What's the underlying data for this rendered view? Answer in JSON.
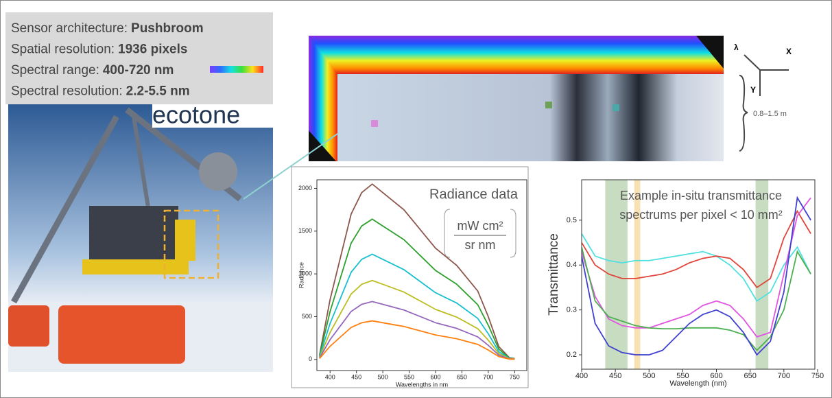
{
  "specs": [
    {
      "label": "Sensor architecture:",
      "value": "Pushbroom"
    },
    {
      "label": "Spatial resolution:",
      "value": "1936 pixels"
    },
    {
      "label": "Spectral range:",
      "value": "400-720 nm"
    },
    {
      "label": "Spectral resolution:",
      "value": "2.2-5.5 nm"
    }
  ],
  "logo": "ecotone",
  "axes_labels": {
    "lambda": "λ",
    "x": "X",
    "y": "Y",
    "depth": "0.8–1.5 m"
  },
  "chart_data": [
    {
      "type": "line",
      "annotation": "Radiance data",
      "unit": {
        "numerator": "mW cm²",
        "denominator": "sr nm"
      },
      "x_label": "Wavelengths in nm",
      "y_label": "Radiance",
      "x": [
        380,
        400,
        420,
        440,
        460,
        480,
        500,
        520,
        540,
        560,
        580,
        600,
        620,
        640,
        660,
        680,
        700,
        720,
        740,
        750
      ],
      "xlim": [
        375,
        773
      ],
      "ylim": [
        -130,
        2100
      ],
      "xticks": [
        400,
        450,
        500,
        550,
        600,
        650,
        700,
        750
      ],
      "yticks": [
        0,
        500,
        1000,
        1500,
        2000
      ],
      "series": [
        {
          "color": "#8c564b",
          "values": [
            50,
            700,
            1200,
            1700,
            1950,
            2050,
            1950,
            1850,
            1750,
            1600,
            1450,
            1300,
            1200,
            1100,
            950,
            800,
            500,
            150,
            20,
            10
          ]
        },
        {
          "color": "#2ca02c",
          "values": [
            40,
            560,
            960,
            1360,
            1560,
            1640,
            1560,
            1480,
            1400,
            1280,
            1160,
            1040,
            960,
            880,
            760,
            640,
            400,
            120,
            16,
            8
          ]
        },
        {
          "color": "#17becf",
          "values": [
            30,
            420,
            720,
            1020,
            1170,
            1230,
            1170,
            1110,
            1050,
            960,
            870,
            780,
            720,
            660,
            570,
            480,
            300,
            90,
            12,
            6
          ]
        },
        {
          "color": "#bcbd22",
          "values": [
            23,
            315,
            540,
            765,
            878,
            923,
            878,
            833,
            788,
            720,
            653,
            585,
            540,
            495,
            428,
            360,
            225,
            68,
            9,
            5
          ]
        },
        {
          "color": "#9467bd",
          "values": [
            17,
            231,
            396,
            561,
            644,
            677,
            644,
            611,
            578,
            528,
            479,
            429,
            396,
            363,
            314,
            264,
            165,
            50,
            7,
            3
          ]
        },
        {
          "color": "#ff7f0e",
          "values": [
            11,
            154,
            264,
            374,
            429,
            451,
            429,
            407,
            385,
            352,
            319,
            286,
            264,
            242,
            209,
            176,
            110,
            33,
            4,
            2
          ]
        }
      ]
    },
    {
      "type": "line",
      "title_lines": [
        "Example in-situ transmittance",
        "spectrums per pixel < 10 mm²"
      ],
      "x_label": "Wavelength (nm)",
      "y_label": "Transmittance",
      "x": [
        400,
        420,
        440,
        460,
        480,
        500,
        520,
        540,
        560,
        580,
        600,
        620,
        640,
        660,
        680,
        700,
        720,
        740
      ],
      "xlim": [
        400,
        746
      ],
      "ylim": [
        0.168,
        0.59
      ],
      "xticks": [
        400,
        450,
        500,
        550,
        600,
        650,
        700,
        750
      ],
      "yticks": [
        0.2,
        0.3,
        0.4,
        0.5
      ],
      "bands": [
        {
          "range": [
            435,
            468
          ],
          "color": "#b9d3b0"
        },
        {
          "range": [
            478,
            487
          ],
          "color": "#f7d9a0"
        },
        {
          "range": [
            658,
            677
          ],
          "color": "#b9d3b0"
        }
      ],
      "series": [
        {
          "color": "#4fe0e0",
          "values": [
            0.47,
            0.42,
            0.41,
            0.405,
            0.41,
            0.41,
            0.415,
            0.42,
            0.425,
            0.43,
            0.42,
            0.4,
            0.37,
            0.32,
            0.34,
            0.4,
            0.44,
            0.38
          ]
        },
        {
          "color": "#e0453a",
          "values": [
            0.45,
            0.4,
            0.38,
            0.37,
            0.37,
            0.375,
            0.38,
            0.39,
            0.405,
            0.415,
            0.42,
            0.415,
            0.39,
            0.35,
            0.37,
            0.46,
            0.52,
            0.47
          ]
        },
        {
          "color": "#e055e0",
          "values": [
            0.43,
            0.33,
            0.28,
            0.265,
            0.26,
            0.26,
            0.27,
            0.28,
            0.29,
            0.31,
            0.32,
            0.31,
            0.28,
            0.24,
            0.25,
            0.38,
            0.51,
            0.55
          ]
        },
        {
          "color": "#4caf50",
          "values": [
            0.44,
            0.32,
            0.285,
            0.275,
            0.265,
            0.26,
            0.258,
            0.258,
            0.26,
            0.26,
            0.26,
            0.255,
            0.245,
            0.21,
            0.24,
            0.3,
            0.43,
            0.38
          ]
        },
        {
          "color": "#4040d0",
          "values": [
            0.42,
            0.27,
            0.22,
            0.205,
            0.2,
            0.2,
            0.21,
            0.24,
            0.27,
            0.29,
            0.3,
            0.285,
            0.25,
            0.2,
            0.23,
            0.34,
            0.55,
            0.5
          ]
        }
      ]
    }
  ]
}
